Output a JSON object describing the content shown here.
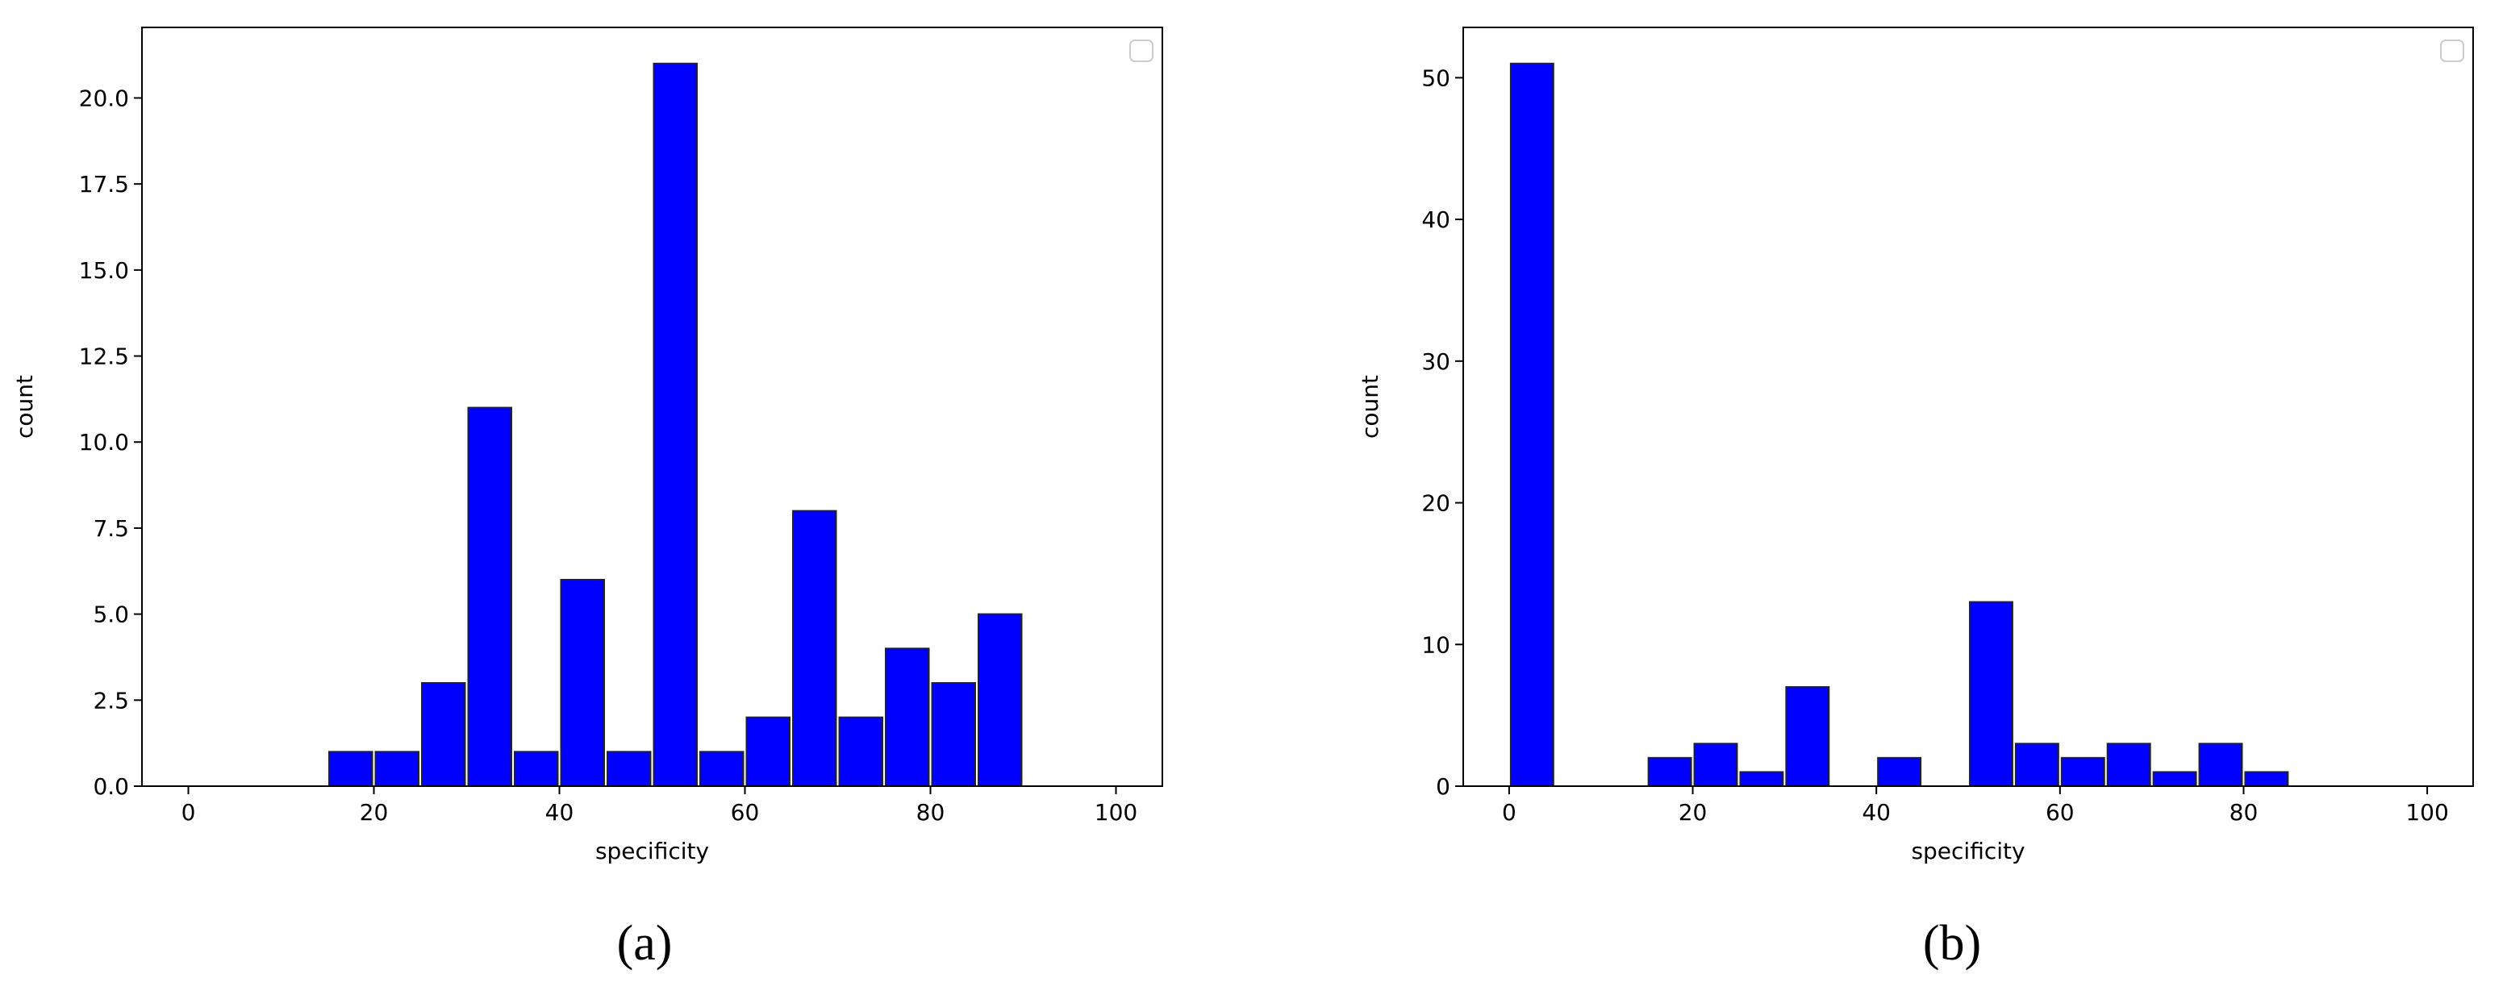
{
  "chart_data": [
    {
      "type": "histogram",
      "caption": "(a)",
      "xlabel": "specificity",
      "ylabel": "count",
      "color": "#0000ff",
      "bins": [
        0,
        5,
        10,
        15,
        20,
        25,
        30,
        35,
        40,
        45,
        50,
        55,
        60,
        65,
        70,
        75,
        80,
        85,
        90,
        95,
        100
      ],
      "values": [
        0,
        0,
        0,
        1,
        1,
        3,
        11,
        1,
        6,
        1,
        21,
        1,
        2,
        8,
        2,
        4,
        3,
        5,
        0,
        0
      ],
      "xlim": [
        -5,
        105
      ],
      "xticks": [
        0,
        20,
        40,
        60,
        80,
        100
      ],
      "ylim": [
        0,
        22.05
      ],
      "yticks": [
        {
          "value": 0,
          "label": "0.0"
        },
        {
          "value": 2.5,
          "label": "2.5"
        },
        {
          "value": 5,
          "label": "5.0"
        },
        {
          "value": 7.5,
          "label": "7.5"
        },
        {
          "value": 10,
          "label": "10.0"
        },
        {
          "value": 12.5,
          "label": "12.5"
        },
        {
          "value": 15,
          "label": "15.0"
        },
        {
          "value": 17.5,
          "label": "17.5"
        },
        {
          "value": 20,
          "label": "20.0"
        }
      ]
    },
    {
      "type": "histogram",
      "caption": "(b)",
      "xlabel": "specificity",
      "ylabel": "count",
      "color": "#0000ff",
      "bins": [
        0,
        5,
        10,
        15,
        20,
        25,
        30,
        35,
        40,
        45,
        50,
        55,
        60,
        65,
        70,
        75,
        80,
        85,
        90,
        95,
        100
      ],
      "values": [
        51,
        0,
        0,
        2,
        3,
        1,
        7,
        0,
        2,
        0,
        13,
        3,
        2,
        3,
        1,
        3,
        1,
        0,
        0,
        0
      ],
      "xlim": [
        -5,
        105
      ],
      "xticks": [
        0,
        20,
        40,
        60,
        80,
        100
      ],
      "ylim": [
        0,
        53.55
      ],
      "yticks": [
        0,
        10,
        20,
        30,
        40,
        50
      ]
    }
  ]
}
